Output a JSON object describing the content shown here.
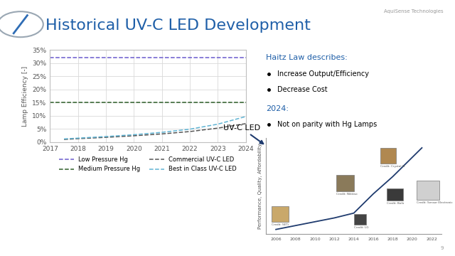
{
  "header": {
    "title": "Historical UV-C LED Development",
    "company": "AquiSense Technologies",
    "page": "9"
  },
  "notes": {
    "heading1": "Haitz Law describes:",
    "bullets1": [
      "Increase Output/Efficiency",
      "Decrease Cost"
    ],
    "heading2": "2024:",
    "bullets2": [
      "Not on parity with Hg Lamps"
    ]
  },
  "chart_data": [
    {
      "type": "line",
      "y_label": "Lamp Efficiency [-]",
      "xlim": [
        2017,
        2024
      ],
      "xticks": [
        2017,
        2018,
        2019,
        2020,
        2021,
        2022,
        2023,
        2024
      ],
      "ylim": [
        0,
        35
      ],
      "yticks": [
        {
          "value": 0,
          "label": "0%"
        },
        {
          "value": 5,
          "label": "5%"
        },
        {
          "value": 10,
          "label": "10%"
        },
        {
          "value": 15,
          "label": "15%"
        },
        {
          "value": 20,
          "label": "20%"
        },
        {
          "value": 25,
          "label": "25%"
        },
        {
          "value": 30,
          "label": "30%"
        },
        {
          "value": 35,
          "label": "35%"
        }
      ],
      "grid": true,
      "legend": "upper center",
      "series": [
        {
          "name": "Low Pressure Hg",
          "color": "#6a5acd",
          "line_style": "dashed",
          "x": [
            2017,
            2024
          ],
          "values": [
            32,
            32
          ]
        },
        {
          "name": "Medium Pressure Hg",
          "color": "#2f5f2a",
          "line_style": "dashed",
          "x": [
            2017,
            2024
          ],
          "values": [
            15,
            15
          ]
        },
        {
          "name": "Commercial UV-C LED",
          "color": "#555555",
          "line_style": "dashed",
          "x": [
            2017.5,
            2018,
            2019,
            2020,
            2021,
            2022,
            2023,
            2024
          ],
          "values": [
            1.0,
            1.3,
            1.8,
            2.4,
            3.1,
            4.0,
            5.3,
            7.0
          ]
        },
        {
          "name": "Best in Class UV-C LED",
          "color": "#5fb3d3",
          "line_style": "dashed",
          "x": [
            2017.5,
            2018,
            2019,
            2020,
            2021,
            2022,
            2023,
            2024
          ],
          "values": [
            1.2,
            1.5,
            2.1,
            2.8,
            3.7,
            4.9,
            6.8,
            9.7
          ]
        }
      ]
    },
    {
      "type": "line",
      "y_label": "Performance, Quality, Affordability",
      "callout": "UV-C LED",
      "xlim": [
        2005,
        2023
      ],
      "xticks": [
        2006,
        2008,
        2010,
        2012,
        2014,
        2016,
        2018,
        2020,
        2022
      ],
      "ylim": [
        0,
        1
      ],
      "yticks": [],
      "tick_labels": "x",
      "grid": false,
      "color": "#1f3b6e",
      "line_style": "solid",
      "x": [
        2006,
        2008,
        2010,
        2012,
        2014,
        2016,
        2018,
        2020,
        2021
      ],
      "values": [
        0.05,
        0.09,
        0.13,
        0.17,
        0.22,
        0.42,
        0.6,
        0.8,
        0.9
      ],
      "image_credits": [
        "Credit: SETi",
        "Credit: Nikkiso",
        "Credit: LG",
        "Credit: Crystal IS",
        "Credit: Bolb",
        "Credit: Sensor Electronic"
      ]
    }
  ]
}
